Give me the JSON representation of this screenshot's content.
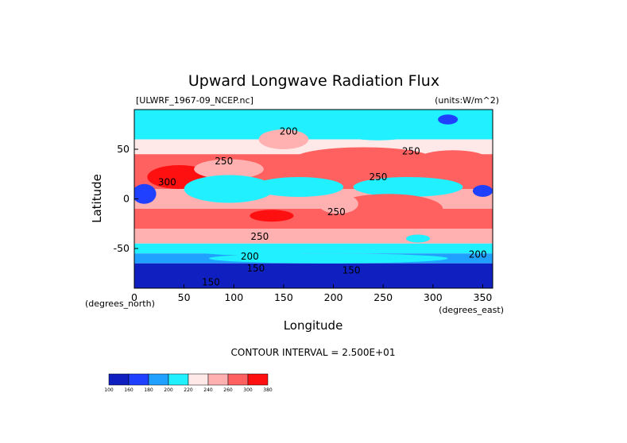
{
  "chart_data": {
    "type": "heatmap",
    "title": "Upward Longwave Radiation Flux",
    "dataset_label": "[ULWRF_1967-09_NCEP.nc]",
    "units_label": "(units:W/m^2)",
    "xlabel": "Longitude",
    "ylabel": "Latitude",
    "x_unit_label": "(degrees_east)",
    "y_unit_label": "(degrees_north)",
    "xlim": [
      0,
      360
    ],
    "ylim": [
      -90,
      90
    ],
    "x_ticks": [
      0,
      50,
      100,
      150,
      200,
      250,
      300,
      350
    ],
    "y_ticks": [
      -50,
      0,
      50
    ],
    "contour_interval_text": "CONTOUR INTERVAL = 2.500E+01",
    "contour_labels": [
      {
        "text": "200",
        "lon": 155,
        "lat": 68
      },
      {
        "text": "250",
        "lon": 90,
        "lat": 38
      },
      {
        "text": "300",
        "lon": 33,
        "lat": 17
      },
      {
        "text": "250",
        "lon": 278,
        "lat": 48
      },
      {
        "text": "250",
        "lon": 245,
        "lat": 22
      },
      {
        "text": "250",
        "lon": 203,
        "lat": -13
      },
      {
        "text": "250",
        "lon": 126,
        "lat": -38
      },
      {
        "text": "200",
        "lon": 116,
        "lat": -58
      },
      {
        "text": "200",
        "lon": 345,
        "lat": -56
      },
      {
        "text": "150",
        "lon": 122,
        "lat": -70
      },
      {
        "text": "150",
        "lon": 218,
        "lat": -72
      },
      {
        "text": "150",
        "lon": 77,
        "lat": -84
      }
    ],
    "colorbar": {
      "levels": [
        "100",
        "160",
        "180",
        "200",
        "220",
        "240",
        "260",
        "300",
        "380"
      ],
      "colors": [
        "#1020c0",
        "#2040ff",
        "#20a0ff",
        "#20f0ff",
        "#ffe8e8",
        "#ffb0b0",
        "#ff6060",
        "#ff1010"
      ]
    },
    "bands": [
      {
        "lat_range": [
          80,
          90
        ],
        "value": 205
      },
      {
        "lat_range": [
          60,
          80
        ],
        "value": 205
      },
      {
        "lat_range": [
          45,
          60
        ],
        "value": 235
      },
      {
        "lat_range": [
          30,
          45
        ],
        "value": 262
      },
      {
        "lat_range": [
          10,
          30
        ],
        "value": 265
      },
      {
        "lat_range": [
          -10,
          10
        ],
        "value": 250
      },
      {
        "lat_range": [
          -30,
          -10
        ],
        "value": 282
      },
      {
        "lat_range": [
          -45,
          -30
        ],
        "value": 250
      },
      {
        "lat_range": [
          -55,
          -45
        ],
        "value": 212
      },
      {
        "lat_range": [
          -65,
          -55
        ],
        "value": 185
      },
      {
        "lat_range": [
          -90,
          -65
        ],
        "value": 140
      }
    ],
    "regions": [
      {
        "shape": "ellipse",
        "lon": 45,
        "lat": 22,
        "rlon": 32,
        "rlat": 12,
        "value": 320
      },
      {
        "shape": "ellipse",
        "lon": 138,
        "lat": -17,
        "rlon": 22,
        "rlat": 6,
        "value": 320
      },
      {
        "shape": "ellipse",
        "lon": 95,
        "lat": 30,
        "rlon": 35,
        "rlat": 10,
        "value": 245
      },
      {
        "shape": "ellipse",
        "lon": 95,
        "lat": 10,
        "rlon": 45,
        "rlat": 14,
        "value": 212
      },
      {
        "shape": "ellipse",
        "lon": 165,
        "lat": 12,
        "rlon": 45,
        "rlat": 10,
        "value": 212
      },
      {
        "shape": "ellipse",
        "lon": 275,
        "lat": 12,
        "rlon": 55,
        "rlat": 10,
        "value": 212
      },
      {
        "shape": "ellipse",
        "lon": 10,
        "lat": 5,
        "rlon": 12,
        "rlat": 10,
        "value": 170
      },
      {
        "shape": "ellipse",
        "lon": 350,
        "lat": 8,
        "rlon": 10,
        "rlat": 6,
        "value": 170
      },
      {
        "shape": "ellipse",
        "lon": 230,
        "lat": 40,
        "rlon": 70,
        "rlat": 12,
        "value": 282
      },
      {
        "shape": "ellipse",
        "lon": 320,
        "lat": 40,
        "rlon": 35,
        "rlat": 9,
        "value": 282
      },
      {
        "shape": "ellipse",
        "lon": 150,
        "lat": 60,
        "rlon": 25,
        "rlat": 10,
        "value": 245
      },
      {
        "shape": "ellipse",
        "lon": 40,
        "lat": 72,
        "rlon": 30,
        "rlat": 8,
        "value": 212
      },
      {
        "shape": "ellipse",
        "lon": 245,
        "lat": 68,
        "rlon": 40,
        "rlat": 9,
        "value": 212
      },
      {
        "shape": "ellipse",
        "lon": 315,
        "lat": 80,
        "rlon": 10,
        "rlat": 5,
        "value": 170
      },
      {
        "shape": "ellipse",
        "lon": 255,
        "lat": -10,
        "rlon": 55,
        "rlat": 15,
        "value": 282
      },
      {
        "shape": "ellipse",
        "lon": 205,
        "lat": -5,
        "rlon": 20,
        "rlat": 10,
        "value": 245
      },
      {
        "shape": "ellipse",
        "lon": 260,
        "lat": -38,
        "rlon": 55,
        "rlat": 6,
        "value": 245
      },
      {
        "shape": "ellipse",
        "lon": 285,
        "lat": -40,
        "rlon": 12,
        "rlat": 4,
        "value": 212
      },
      {
        "shape": "ellipse",
        "lon": 195,
        "lat": -60,
        "rlon": 120,
        "rlat": 5,
        "value": 212
      },
      {
        "shape": "ellipse",
        "lon": 120,
        "lat": -52,
        "rlon": 60,
        "rlat": 5,
        "value": 212
      }
    ]
  }
}
